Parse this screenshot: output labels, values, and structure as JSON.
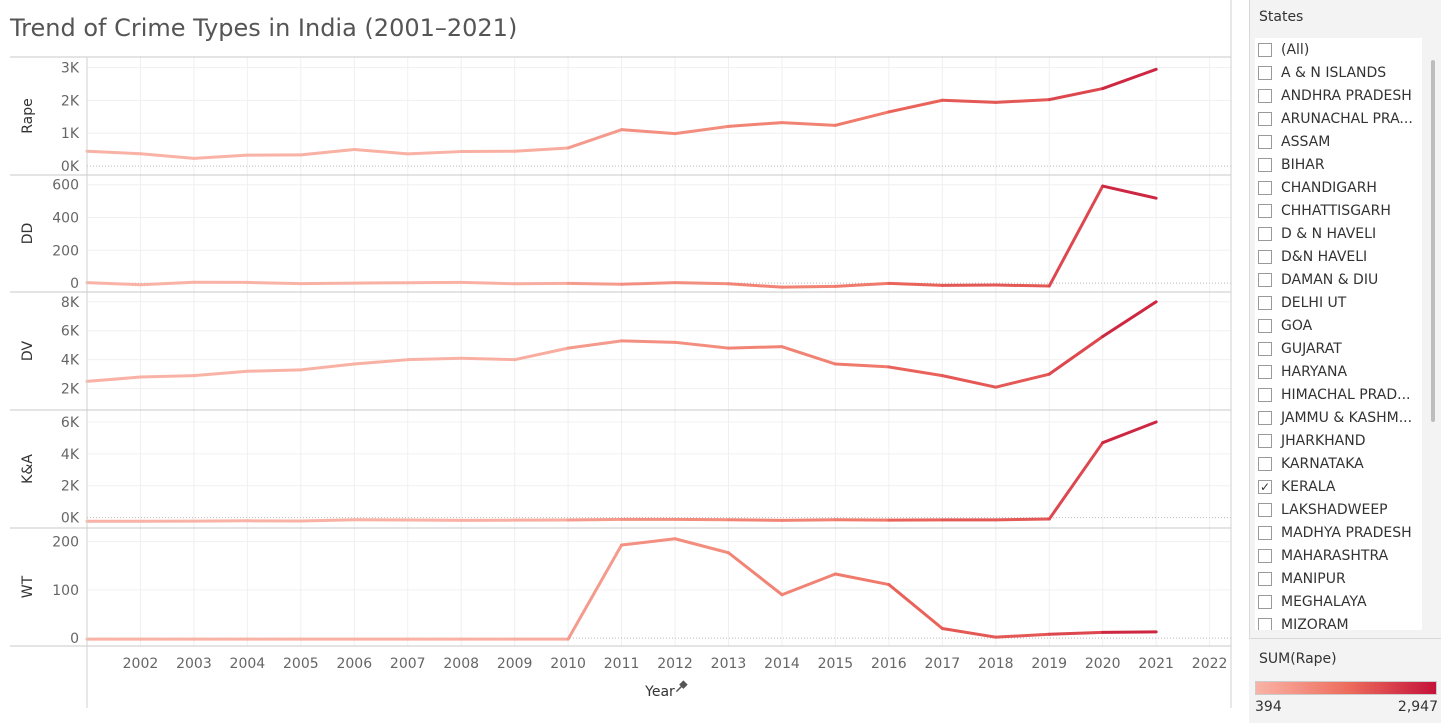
{
  "title": "Trend of Crime Types in India (2001–2021)",
  "filter": {
    "header": "States",
    "items": [
      {
        "label": "(All)",
        "checked": false
      },
      {
        "label": "A & N ISLANDS",
        "checked": false
      },
      {
        "label": "ANDHRA PRADESH",
        "checked": false
      },
      {
        "label": "ARUNACHAL PRA...",
        "checked": false
      },
      {
        "label": "ASSAM",
        "checked": false
      },
      {
        "label": "BIHAR",
        "checked": false
      },
      {
        "label": "CHANDIGARH",
        "checked": false
      },
      {
        "label": "CHHATTISGARH",
        "checked": false
      },
      {
        "label": "D & N HAVELI",
        "checked": false
      },
      {
        "label": "D&N HAVELI",
        "checked": false
      },
      {
        "label": "DAMAN & DIU",
        "checked": false
      },
      {
        "label": "DELHI UT",
        "checked": false
      },
      {
        "label": "GOA",
        "checked": false
      },
      {
        "label": "GUJARAT",
        "checked": false
      },
      {
        "label": "HARYANA",
        "checked": false
      },
      {
        "label": "HIMACHAL PRAD...",
        "checked": false
      },
      {
        "label": "JAMMU & KASHM...",
        "checked": false
      },
      {
        "label": "JHARKHAND",
        "checked": false
      },
      {
        "label": "KARNATAKA",
        "checked": false
      },
      {
        "label": "KERALA",
        "checked": true
      },
      {
        "label": "LAKSHADWEEP",
        "checked": false
      },
      {
        "label": "MADHYA PRADESH",
        "checked": false
      },
      {
        "label": "MAHARASHTRA",
        "checked": false
      },
      {
        "label": "MANIPUR",
        "checked": false
      },
      {
        "label": "MEGHALAYA",
        "checked": false
      },
      {
        "label": "MIZORAM",
        "checked": false
      }
    ]
  },
  "legend": {
    "title": "SUM(Rape)",
    "min_label": "394",
    "max_label": "2,947",
    "min_value": 394,
    "max_value": 2947,
    "color_low": "#f9b3a6",
    "color_mid": "#ee6e5e",
    "color_high": "#c4123a"
  },
  "chart_data": {
    "type": "line",
    "xlabel": "Year",
    "x_ticks": [
      "2002",
      "2003",
      "2004",
      "2005",
      "2006",
      "2007",
      "2008",
      "2009",
      "2010",
      "2011",
      "2012",
      "2013",
      "2014",
      "2015",
      "2016",
      "2017",
      "2018",
      "2019",
      "2020",
      "2021",
      "2022"
    ],
    "x_range": [
      2001,
      2022.4
    ],
    "x": [
      2001,
      2002,
      2003,
      2004,
      2005,
      2006,
      2007,
      2008,
      2009,
      2010,
      2011,
      2012,
      2013,
      2014,
      2015,
      2016,
      2017,
      2018,
      2019,
      2020,
      2021
    ],
    "color_by": [
      453,
      376,
      235,
      334,
      341,
      504,
      373,
      442,
      453,
      552,
      1109,
      988,
      1208,
      1325,
      1241,
      1650,
      2004,
      1941,
      2023,
      2361,
      2947
    ],
    "panels": [
      {
        "ylabel": "Rape",
        "ylim": [
          -150,
          3200
        ],
        "yticks": [
          0,
          1000,
          2000,
          3000
        ],
        "ytick_labels": [
          "0K",
          "1K",
          "2K",
          "3K"
        ],
        "values": [
          453,
          376,
          235,
          334,
          341,
          504,
          373,
          442,
          453,
          552,
          1109,
          988,
          1208,
          1325,
          1241,
          1650,
          2004,
          1941,
          2023,
          2361,
          2947
        ]
      },
      {
        "ylabel": "DD",
        "ylim": [
          -30,
          635
        ],
        "yticks": [
          0,
          200,
          400,
          600
        ],
        "ytick_labels": [
          "0",
          "200",
          "400",
          "600"
        ],
        "values": [
          3,
          -10,
          5,
          4,
          -3,
          0,
          2,
          4,
          -4,
          -2,
          -7,
          3,
          -4,
          -25,
          -20,
          -2,
          -14,
          -12,
          -18,
          592,
          518
        ]
      },
      {
        "ylabel": "DV",
        "ylim": [
          800,
          8400
        ],
        "yticks": [
          2000,
          4000,
          6000,
          8000
        ],
        "ytick_labels": [
          "2K",
          "4K",
          "6K",
          "8K"
        ],
        "values": [
          2500,
          2800,
          2900,
          3200,
          3300,
          3700,
          4000,
          4100,
          4000,
          4800,
          5300,
          5200,
          4800,
          4900,
          3700,
          3500,
          2900,
          2100,
          3000,
          5600,
          8000
        ]
      },
      {
        "ylabel": "K&A",
        "ylim": [
          -400,
          6500
        ],
        "yticks": [
          0,
          2000,
          4000,
          6000
        ],
        "ytick_labels": [
          "0K",
          "2K",
          "4K",
          "6K"
        ],
        "values": [
          -230,
          -230,
          -220,
          -200,
          -210,
          -130,
          -150,
          -170,
          -160,
          -150,
          -110,
          -110,
          -130,
          -170,
          -130,
          -160,
          -140,
          -140,
          -90,
          4700,
          6000
        ]
      },
      {
        "ylabel": "WT",
        "ylim": [
          -8,
          220
        ],
        "yticks": [
          0,
          100,
          200
        ],
        "ytick_labels": [
          "0",
          "100",
          "200"
        ],
        "values": [
          -2,
          -2,
          -2,
          -2,
          -2,
          -2,
          -2,
          -2,
          -2,
          -2,
          193,
          206,
          177,
          90,
          133,
          111,
          20,
          2,
          8,
          12,
          13
        ]
      }
    ]
  }
}
